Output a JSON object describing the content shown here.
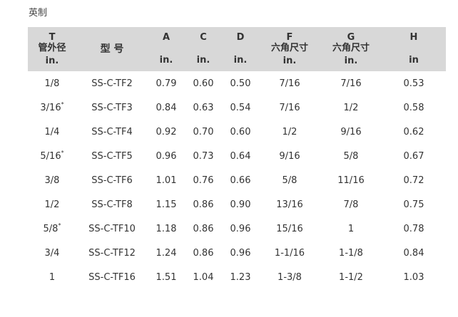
{
  "caption": "英制",
  "header": [
    {
      "sym": "T",
      "label": "管外径",
      "unit": "in."
    },
    {
      "sym": "",
      "label": "型 号",
      "unit": ""
    },
    {
      "sym": "A",
      "label": "",
      "unit": "in."
    },
    {
      "sym": "C",
      "label": "",
      "unit": "in."
    },
    {
      "sym": "D",
      "label": "",
      "unit": "in."
    },
    {
      "sym": "F",
      "label": "六角尺寸",
      "unit": "in."
    },
    {
      "sym": "G",
      "label": "六角尺寸",
      "unit": "in."
    },
    {
      "sym": "H",
      "label": "",
      "unit": "in"
    }
  ],
  "rows": [
    {
      "t": "1/8",
      "mark": "",
      "model": "SS-C-TF2",
      "a": "0.79",
      "c": "0.60",
      "d": "0.50",
      "f": "7/16",
      "g": "7/16",
      "h": "0.53"
    },
    {
      "t": "3/16",
      "mark": "*",
      "model": "SS-C-TF3",
      "a": "0.84",
      "c": "0.63",
      "d": "0.54",
      "f": "7/16",
      "g": "1/2",
      "h": "0.58"
    },
    {
      "t": "1/4",
      "mark": "",
      "model": "SS-C-TF4",
      "a": "0.92",
      "c": "0.70",
      "d": "0.60",
      "f": "1/2",
      "g": "9/16",
      "h": "0.62"
    },
    {
      "t": "5/16",
      "mark": "*",
      "model": "SS-C-TF5",
      "a": "0.96",
      "c": "0.73",
      "d": "0.64",
      "f": "9/16",
      "g": "5/8",
      "h": "0.67"
    },
    {
      "t": "3/8",
      "mark": "",
      "model": "SS-C-TF6",
      "a": "1.01",
      "c": "0.76",
      "d": "0.66",
      "f": "5/8",
      "g": "11/16",
      "h": "0.72"
    },
    {
      "t": "1/2",
      "mark": "",
      "model": "SS-C-TF8",
      "a": "1.15",
      "c": "0.86",
      "d": "0.90",
      "f": "13/16",
      "g": "7/8",
      "h": "0.75"
    },
    {
      "t": "5/8",
      "mark": "*",
      "model": "SS-C-TF10",
      "a": "1.18",
      "c": "0.86",
      "d": "0.96",
      "f": "15/16",
      "g": "1",
      "h": "0.78"
    },
    {
      "t": "3/4",
      "mark": "",
      "model": "SS-C-TF12",
      "a": "1.24",
      "c": "0.86",
      "d": "0.96",
      "f": "1-1/16",
      "g": "1-1/8",
      "h": "0.84"
    },
    {
      "t": "1",
      "mark": "",
      "model": "SS-C-TF16",
      "a": "1.51",
      "c": "1.04",
      "d": "1.23",
      "f": "1-3/8",
      "g": "1-1/2",
      "h": "1.03"
    }
  ]
}
